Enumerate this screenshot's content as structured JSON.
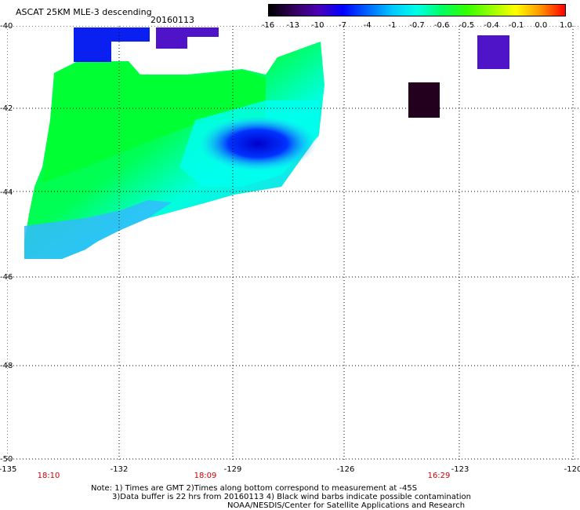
{
  "header": {
    "title": "ASCAT 25KM MLE-3 descending",
    "date": "20160113"
  },
  "colorbar": {
    "labels": [
      "-16",
      "-13",
      "-10",
      "-7",
      "-4",
      "-1",
      "-0.7",
      "-0.6",
      "-0.5",
      "-0.4",
      "-0.1",
      "0.0",
      "1.0"
    ],
    "colors": [
      "#000000",
      "#32005a",
      "#4b00b4",
      "#0000ff",
      "#0064ff",
      "#00c8ff",
      "#00ffe6",
      "#00ff64",
      "#32ff00",
      "#96ff00",
      "#ffff00",
      "#ff9600",
      "#ff0000"
    ]
  },
  "map": {
    "lat_labels": [
      "-40",
      "-42",
      "-44",
      "-46",
      "-48",
      "-50"
    ],
    "lon_labels": [
      "-135",
      "-132",
      "-129",
      "-126",
      "-123",
      "-120"
    ],
    "time_labels": [
      "18:10",
      "18:09",
      "16:29"
    ],
    "region_colors": {
      "green": "#00ff33",
      "cyan": "#00ffee",
      "light_blue": "#33bbff",
      "blue": "#0033ff",
      "dark_blue": "#0000cc",
      "purple": "#4f14c8",
      "very_dark": "#22001e"
    }
  },
  "notes": {
    "line1": "Note: 1) Times are GMT 2)Times along bottom correspond to measurement at -45S",
    "line2": "3)Data buffer is 22 hrs from 20160113 4) Black wind barbs indicate possible contamination",
    "line3": "NOAA/NESDIS/Center for Satellite Applications and Research"
  }
}
